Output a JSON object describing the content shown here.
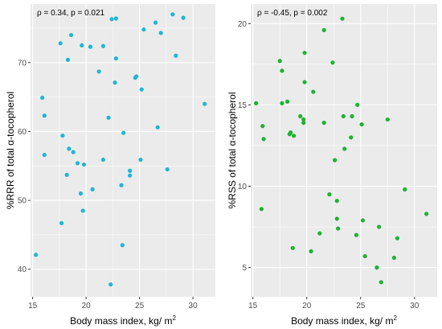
{
  "colors": {
    "panel_bg": "#EBEBEB",
    "grid": "#FFFFFF",
    "left_points": "#1FB5D6",
    "right_points": "#1DB233"
  },
  "chart_data": [
    {
      "type": "scatter",
      "annotation": "ρ = 0.34, p = 0.021",
      "xlabel_main": "Body mass index, kg/ m",
      "xlabel_sup": "2",
      "ylabel": "%RRR of total α-tocopherol",
      "xlim": [
        14.8,
        32.1
      ],
      "ylim": [
        36.0,
        78.5
      ],
      "x_ticks": [
        15,
        20,
        25,
        30
      ],
      "y_ticks": [
        40,
        50,
        60,
        70
      ],
      "grid": true,
      "point_color": "#1FB5D6",
      "points": [
        {
          "x": 15.3,
          "y": 42.1
        },
        {
          "x": 15.9,
          "y": 64.9
        },
        {
          "x": 16.1,
          "y": 56.6
        },
        {
          "x": 16.1,
          "y": 62.3
        },
        {
          "x": 17.6,
          "y": 72.8
        },
        {
          "x": 17.7,
          "y": 46.7
        },
        {
          "x": 17.8,
          "y": 59.4
        },
        {
          "x": 18.2,
          "y": 53.7
        },
        {
          "x": 18.3,
          "y": 70.4
        },
        {
          "x": 18.4,
          "y": 57.5
        },
        {
          "x": 18.6,
          "y": 74.0
        },
        {
          "x": 18.8,
          "y": 57.0
        },
        {
          "x": 19.2,
          "y": 55.4
        },
        {
          "x": 19.5,
          "y": 51.0
        },
        {
          "x": 19.6,
          "y": 72.5
        },
        {
          "x": 19.7,
          "y": 48.5
        },
        {
          "x": 19.8,
          "y": 55.2
        },
        {
          "x": 20.4,
          "y": 72.3
        },
        {
          "x": 20.6,
          "y": 51.6
        },
        {
          "x": 21.2,
          "y": 68.7
        },
        {
          "x": 21.6,
          "y": 72.4
        },
        {
          "x": 21.6,
          "y": 55.9
        },
        {
          "x": 22.1,
          "y": 62.0
        },
        {
          "x": 22.3,
          "y": 37.8
        },
        {
          "x": 22.4,
          "y": 76.3
        },
        {
          "x": 22.7,
          "y": 67.1
        },
        {
          "x": 22.8,
          "y": 76.4
        },
        {
          "x": 22.8,
          "y": 70.6
        },
        {
          "x": 23.3,
          "y": 52.2
        },
        {
          "x": 23.4,
          "y": 43.5
        },
        {
          "x": 23.5,
          "y": 59.8
        },
        {
          "x": 24.1,
          "y": 53.6
        },
        {
          "x": 24.1,
          "y": 54.3
        },
        {
          "x": 24.6,
          "y": 67.8
        },
        {
          "x": 24.7,
          "y": 68.0
        },
        {
          "x": 25.1,
          "y": 55.9
        },
        {
          "x": 25.2,
          "y": 66.1
        },
        {
          "x": 25.4,
          "y": 74.8
        },
        {
          "x": 26.5,
          "y": 75.8
        },
        {
          "x": 26.7,
          "y": 60.6
        },
        {
          "x": 27.0,
          "y": 74.3
        },
        {
          "x": 27.6,
          "y": 54.5
        },
        {
          "x": 28.1,
          "y": 77.0
        },
        {
          "x": 28.4,
          "y": 71.0
        },
        {
          "x": 29.1,
          "y": 76.5
        },
        {
          "x": 31.1,
          "y": 64.0
        }
      ]
    },
    {
      "type": "scatter",
      "annotation": "ρ = -0.45, p = 0.002",
      "xlabel_main": "Body mass index, kg/ m",
      "xlabel_sup": "2",
      "ylabel": "%RSS of total α-tocopherol",
      "xlim": [
        14.8,
        32.1
      ],
      "ylim": [
        3.2,
        21.2
      ],
      "x_ticks": [
        15,
        20,
        25,
        30
      ],
      "y_ticks": [
        5,
        10,
        15,
        20
      ],
      "grid": true,
      "point_color": "#1DB233",
      "points": [
        {
          "x": 15.3,
          "y": 15.1
        },
        {
          "x": 15.8,
          "y": 8.6
        },
        {
          "x": 15.9,
          "y": 13.7
        },
        {
          "x": 16.0,
          "y": 12.9
        },
        {
          "x": 17.5,
          "y": 17.7
        },
        {
          "x": 17.7,
          "y": 17.1
        },
        {
          "x": 17.7,
          "y": 15.1
        },
        {
          "x": 18.2,
          "y": 15.2
        },
        {
          "x": 18.4,
          "y": 13.2
        },
        {
          "x": 18.5,
          "y": 13.3
        },
        {
          "x": 18.7,
          "y": 6.2
        },
        {
          "x": 18.8,
          "y": 13.1
        },
        {
          "x": 19.4,
          "y": 14.3
        },
        {
          "x": 19.7,
          "y": 14.1
        },
        {
          "x": 19.7,
          "y": 13.9
        },
        {
          "x": 19.8,
          "y": 16.4
        },
        {
          "x": 19.8,
          "y": 18.2
        },
        {
          "x": 20.4,
          "y": 6.0
        },
        {
          "x": 20.6,
          "y": 15.8
        },
        {
          "x": 21.2,
          "y": 7.1
        },
        {
          "x": 21.6,
          "y": 13.9
        },
        {
          "x": 21.6,
          "y": 19.6
        },
        {
          "x": 22.1,
          "y": 9.5
        },
        {
          "x": 22.4,
          "y": 17.6
        },
        {
          "x": 22.6,
          "y": 11.6
        },
        {
          "x": 22.8,
          "y": 9.1
        },
        {
          "x": 22.8,
          "y": 8.0
        },
        {
          "x": 22.9,
          "y": 7.4
        },
        {
          "x": 23.3,
          "y": 20.3
        },
        {
          "x": 23.4,
          "y": 14.3
        },
        {
          "x": 23.5,
          "y": 12.3
        },
        {
          "x": 24.1,
          "y": 13.0
        },
        {
          "x": 24.2,
          "y": 14.3
        },
        {
          "x": 24.6,
          "y": 7.0
        },
        {
          "x": 24.7,
          "y": 15.0
        },
        {
          "x": 25.1,
          "y": 13.8
        },
        {
          "x": 25.2,
          "y": 7.9
        },
        {
          "x": 25.4,
          "y": 5.7
        },
        {
          "x": 26.5,
          "y": 5.0
        },
        {
          "x": 26.7,
          "y": 7.5
        },
        {
          "x": 26.9,
          "y": 4.1
        },
        {
          "x": 27.5,
          "y": 14.1
        },
        {
          "x": 28.1,
          "y": 5.6
        },
        {
          "x": 28.4,
          "y": 6.8
        },
        {
          "x": 29.1,
          "y": 9.8
        },
        {
          "x": 31.1,
          "y": 8.3
        }
      ]
    }
  ]
}
